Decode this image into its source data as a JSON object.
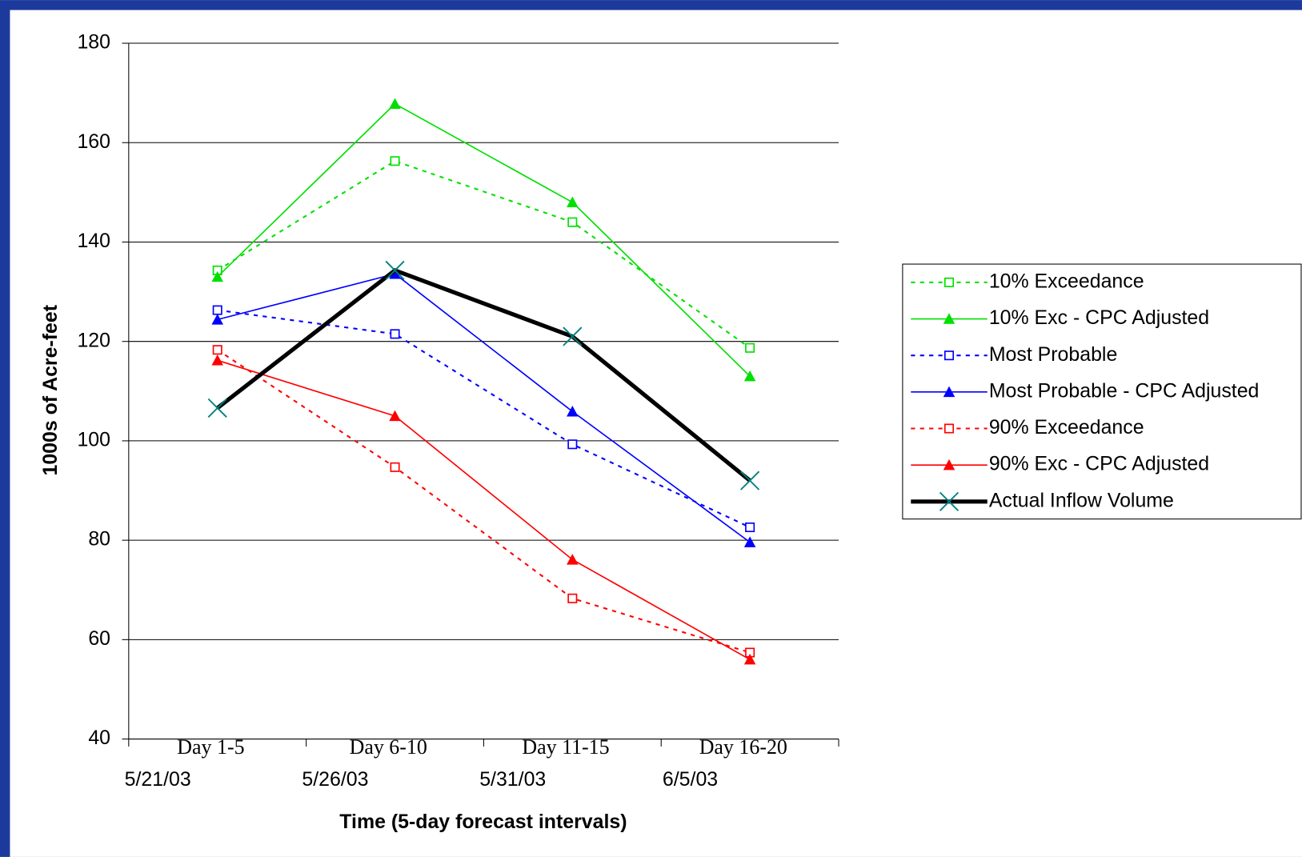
{
  "chart_data": {
    "type": "line",
    "xlabel": "Time (5-day forecast intervals)",
    "ylabel": "1000s of Acre-feet",
    "categories": [
      "Day 1-5",
      "Day 6-10",
      "Day 11-15",
      "Day 16-20"
    ],
    "category_dates": [
      "5/21/03",
      "5/26/03",
      "5/31/03",
      "6/5/03"
    ],
    "ylim": [
      40,
      180
    ],
    "yticks": [
      40,
      60,
      80,
      100,
      120,
      140,
      160,
      180
    ],
    "grid": true,
    "legend": "right",
    "series": [
      {
        "name": "10% Exceedance",
        "color": "#00e000",
        "line_style": "dotted",
        "marker": "square",
        "values": [
          134.3,
          156.3,
          144,
          118.7
        ]
      },
      {
        "name": "10% Exc - CPC Adjusted",
        "color": "#00e000",
        "line_style": "solid",
        "marker": "triangle",
        "values": [
          133,
          167.8,
          148,
          113
        ]
      },
      {
        "name": "Most Probable",
        "color": "#0000ff",
        "line_style": "dotted",
        "marker": "square",
        "values": [
          126.3,
          121.5,
          99.3,
          82.6
        ]
      },
      {
        "name": "Most Probable - CPC Adjusted",
        "color": "#0000ff",
        "line_style": "solid",
        "marker": "triangle",
        "values": [
          124.4,
          133.6,
          105.9,
          79.6
        ]
      },
      {
        "name": "90% Exceedance",
        "color": "#ff0000",
        "line_style": "dotted",
        "marker": "square",
        "values": [
          118.3,
          94.7,
          68.3,
          57.4
        ]
      },
      {
        "name": "90% Exc - CPC Adjusted",
        "color": "#ff0000",
        "line_style": "solid",
        "marker": "triangle",
        "values": [
          116.2,
          105,
          76.1,
          56
        ]
      },
      {
        "name": "Actual Inflow Volume",
        "color": "#000000",
        "line_style": "thick",
        "marker": "x",
        "values": [
          106.6,
          134.3,
          121,
          92
        ]
      }
    ]
  }
}
